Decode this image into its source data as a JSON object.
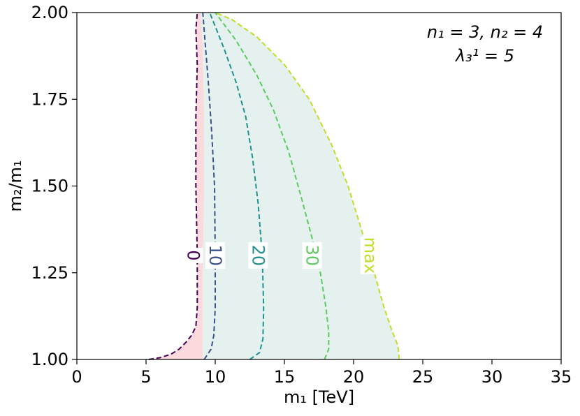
{
  "chart_data": {
    "type": "line",
    "xlabel": "m₁ [TeV]",
    "ylabel": "m₂/m₁",
    "xlim": [
      0,
      35
    ],
    "ylim": [
      1.0,
      2.0
    ],
    "x_ticks": [
      0,
      5,
      10,
      15,
      20,
      25,
      30,
      35
    ],
    "x_tick_labels": [
      "0",
      "5",
      "10",
      "15",
      "20",
      "25",
      "30",
      "35"
    ],
    "y_ticks": [
      1.0,
      1.25,
      1.5,
      1.75,
      2.0
    ],
    "y_tick_labels": [
      "1.00",
      "1.25",
      "1.50",
      "1.75",
      "2.00"
    ],
    "annotation_line1": "n₁ = 3, n₂ = 4",
    "annotation_line2": "λ₃¹ = 5",
    "grid": false,
    "series": [
      {
        "name": "0",
        "color": "#440154",
        "points": [
          [
            5.2,
            1.0
          ],
          [
            6.0,
            1.005
          ],
          [
            6.8,
            1.015
          ],
          [
            7.4,
            1.03
          ],
          [
            7.9,
            1.05
          ],
          [
            8.3,
            1.07
          ],
          [
            8.6,
            1.095
          ],
          [
            8.7,
            1.15
          ],
          [
            8.7,
            1.3
          ],
          [
            8.6,
            1.5
          ],
          [
            8.6,
            1.7
          ],
          [
            8.7,
            1.85
          ],
          [
            8.6,
            1.95
          ],
          [
            8.7,
            2.0
          ]
        ]
      },
      {
        "name": "10",
        "color": "#3b528b",
        "points": [
          [
            9.2,
            1.0
          ],
          [
            9.7,
            1.03
          ],
          [
            9.9,
            1.07
          ],
          [
            10.0,
            1.15
          ],
          [
            10.0,
            1.3
          ],
          [
            9.95,
            1.5
          ],
          [
            9.75,
            1.65
          ],
          [
            9.5,
            1.8
          ],
          [
            9.3,
            1.9
          ],
          [
            9.1,
            2.0
          ]
        ]
      },
      {
        "name": "20",
        "color": "#21918c",
        "points": [
          [
            12.5,
            1.0
          ],
          [
            13.2,
            1.02
          ],
          [
            13.45,
            1.06
          ],
          [
            13.5,
            1.15
          ],
          [
            13.4,
            1.3
          ],
          [
            13.1,
            1.45
          ],
          [
            12.7,
            1.58
          ],
          [
            12.2,
            1.7
          ],
          [
            11.5,
            1.8
          ],
          [
            10.6,
            1.9
          ],
          [
            9.6,
            2.0
          ]
        ]
      },
      {
        "name": "30",
        "color": "#5ec962",
        "points": [
          [
            17.9,
            1.0
          ],
          [
            18.2,
            1.03
          ],
          [
            18.2,
            1.08
          ],
          [
            18.0,
            1.15
          ],
          [
            17.6,
            1.25
          ],
          [
            17.0,
            1.35
          ],
          [
            16.2,
            1.47
          ],
          [
            15.3,
            1.6
          ],
          [
            14.2,
            1.72
          ],
          [
            13.0,
            1.82
          ],
          [
            11.5,
            1.92
          ],
          [
            10.0,
            2.0
          ]
        ]
      },
      {
        "name": "max",
        "color": "#bddf26",
        "points": [
          [
            23.3,
            1.0
          ],
          [
            23.2,
            1.04
          ],
          [
            22.8,
            1.08
          ],
          [
            22.2,
            1.15
          ],
          [
            21.5,
            1.25
          ],
          [
            20.6,
            1.37
          ],
          [
            19.6,
            1.5
          ],
          [
            18.4,
            1.62
          ],
          [
            16.8,
            1.75
          ],
          [
            15.0,
            1.85
          ],
          [
            13.0,
            1.93
          ],
          [
            11.2,
            1.98
          ],
          [
            10.0,
            2.0
          ]
        ]
      }
    ],
    "shaded_regions": [
      {
        "color": "#fadadd",
        "boundary": [
          [
            5.2,
            1.0
          ],
          [
            6.0,
            1.005
          ],
          [
            6.8,
            1.015
          ],
          [
            7.4,
            1.03
          ],
          [
            7.9,
            1.05
          ],
          [
            8.3,
            1.07
          ],
          [
            8.6,
            1.095
          ],
          [
            8.7,
            1.15
          ],
          [
            8.7,
            1.3
          ],
          [
            8.6,
            1.5
          ],
          [
            8.6,
            1.7
          ],
          [
            8.7,
            1.85
          ],
          [
            8.6,
            1.95
          ],
          [
            8.7,
            2.0
          ],
          [
            8.95,
            2.0
          ],
          [
            9.1,
            1.9
          ],
          [
            9.2,
            1.7
          ],
          [
            9.2,
            1.5
          ],
          [
            9.1,
            1.25
          ],
          [
            9.1,
            1.0
          ]
        ]
      },
      {
        "color": "#e4f1ef",
        "boundary": [
          [
            9.1,
            1.0
          ],
          [
            9.1,
            1.25
          ],
          [
            9.2,
            1.5
          ],
          [
            9.2,
            1.7
          ],
          [
            9.1,
            1.9
          ],
          [
            8.95,
            2.0
          ],
          [
            10.0,
            2.0
          ],
          [
            11.2,
            1.98
          ],
          [
            13.0,
            1.93
          ],
          [
            15.0,
            1.85
          ],
          [
            16.8,
            1.75
          ],
          [
            18.4,
            1.62
          ],
          [
            19.6,
            1.5
          ],
          [
            20.6,
            1.37
          ],
          [
            21.5,
            1.25
          ],
          [
            22.2,
            1.15
          ],
          [
            22.8,
            1.08
          ],
          [
            23.2,
            1.04
          ],
          [
            23.3,
            1.0
          ]
        ]
      }
    ],
    "contour_labels": [
      {
        "text": "0",
        "x": 8.4,
        "y": 1.3,
        "color": "#440154"
      },
      {
        "text": "10",
        "x": 10.0,
        "y": 1.3,
        "color": "#3b528b"
      },
      {
        "text": "20",
        "x": 13.1,
        "y": 1.3,
        "color": "#21918c"
      },
      {
        "text": "30",
        "x": 17.0,
        "y": 1.3,
        "color": "#5ec962"
      },
      {
        "text": "max",
        "x": 21.2,
        "y": 1.3,
        "color": "#bddf26"
      }
    ]
  }
}
